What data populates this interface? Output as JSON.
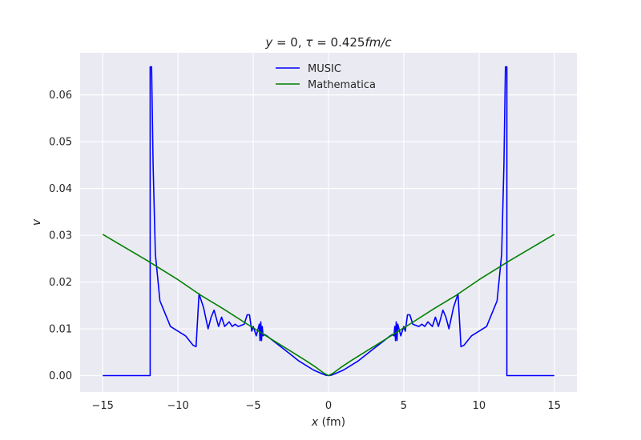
{
  "chart_data": {
    "type": "line",
    "title": "y = 0, τ = 0.425fm/c",
    "title_parts": {
      "y": "y",
      "eq1": " = 0, ",
      "tau": "τ",
      "eq2": " = 0.425",
      "unit": "fm/c"
    },
    "xlabel": "x (fm)",
    "xlabel_parts": {
      "var": "x",
      "unit": " (fm)"
    },
    "ylabel": "v",
    "xlim": [
      -16.5,
      16.5
    ],
    "ylim": [
      -0.0035,
      0.069
    ],
    "x_ticks": [
      -15,
      -10,
      -5,
      0,
      5,
      10,
      15
    ],
    "x_tick_labels": [
      "−15",
      "−10",
      "−5",
      "0",
      "5",
      "10",
      "15"
    ],
    "y_ticks": [
      0.0,
      0.01,
      0.02,
      0.03,
      0.04,
      0.05,
      0.06
    ],
    "y_tick_labels": [
      "0.00",
      "0.01",
      "0.02",
      "0.03",
      "0.04",
      "0.05",
      "0.06"
    ],
    "grid": true,
    "background": "#eaeaf2",
    "legend": {
      "position": "top-center",
      "entries": [
        "MUSIC",
        "Mathematica"
      ]
    },
    "series": [
      {
        "name": "MUSIC",
        "color": "#0000ff",
        "x": [
          -15.0,
          -11.85,
          -11.85,
          -11.75,
          -11.65,
          -11.5,
          -11.2,
          -10.5,
          -9.5,
          -9.0,
          -8.8,
          -8.6,
          -8.3,
          -8.0,
          -7.8,
          -7.6,
          -7.3,
          -7.1,
          -6.9,
          -6.6,
          -6.4,
          -6.2,
          -6.0,
          -5.6,
          -5.4,
          -5.25,
          -5.1,
          -5.0,
          -4.8,
          -4.6,
          -4.55,
          -4.5,
          -4.45,
          -4.4,
          -4.35,
          -4.25,
          -4.1,
          -3.7,
          -3.3,
          -2.9,
          -2.5,
          -2.0,
          -1.5,
          -1.0,
          -0.5,
          -0.2,
          0.0,
          0.2,
          0.5,
          1.0,
          1.5,
          2.0,
          2.5,
          2.9,
          3.3,
          3.7,
          4.1,
          4.25,
          4.35,
          4.4,
          4.45,
          4.5,
          4.55,
          4.6,
          4.8,
          5.0,
          5.1,
          5.25,
          5.4,
          5.6,
          6.0,
          6.2,
          6.4,
          6.6,
          6.9,
          7.1,
          7.3,
          7.6,
          7.8,
          8.0,
          8.3,
          8.6,
          8.8,
          9.0,
          9.5,
          10.5,
          11.2,
          11.5,
          11.65,
          11.75,
          11.85,
          11.85,
          15.0
        ],
        "y": [
          0.0,
          0.0,
          0.066,
          0.066,
          0.045,
          0.026,
          0.016,
          0.0105,
          0.0085,
          0.0065,
          0.0062,
          0.0175,
          0.0145,
          0.01,
          0.0125,
          0.014,
          0.0105,
          0.0125,
          0.0105,
          0.0115,
          0.0105,
          0.011,
          0.0105,
          0.011,
          0.013,
          0.013,
          0.0095,
          0.0105,
          0.0085,
          0.011,
          0.0075,
          0.0115,
          0.0075,
          0.0105,
          0.0085,
          0.0088,
          0.0085,
          0.0075,
          0.0065,
          0.0055,
          0.0045,
          0.0032,
          0.0022,
          0.0012,
          0.0005,
          0.0001,
          0.0,
          0.0001,
          0.0005,
          0.0012,
          0.0022,
          0.0032,
          0.0045,
          0.0055,
          0.0065,
          0.0075,
          0.0085,
          0.0088,
          0.0085,
          0.0105,
          0.0075,
          0.0115,
          0.0075,
          0.011,
          0.0085,
          0.0105,
          0.0095,
          0.013,
          0.013,
          0.011,
          0.0105,
          0.011,
          0.0105,
          0.0115,
          0.0105,
          0.0125,
          0.0105,
          0.014,
          0.0125,
          0.01,
          0.0145,
          0.0175,
          0.0062,
          0.0065,
          0.0085,
          0.0105,
          0.016,
          0.026,
          0.045,
          0.066,
          0.066,
          0.0,
          0.0
        ]
      },
      {
        "name": "Mathematica",
        "color": "#008000",
        "x": [
          -15.0,
          -12.0,
          -10.0,
          -8.5,
          -7.0,
          -5.5,
          -4.5,
          -3.5,
          -2.5,
          -1.5,
          -0.8,
          -0.3,
          0.0,
          0.3,
          0.8,
          1.5,
          2.5,
          3.5,
          4.5,
          5.5,
          7.0,
          8.5,
          10.0,
          12.0,
          15.0
        ],
        "y": [
          0.0302,
          0.0245,
          0.0205,
          0.0172,
          0.0143,
          0.0112,
          0.0092,
          0.0072,
          0.0052,
          0.0032,
          0.0017,
          0.0005,
          0.0,
          0.0005,
          0.0017,
          0.0032,
          0.0052,
          0.0072,
          0.0092,
          0.0112,
          0.0143,
          0.0172,
          0.0205,
          0.0245,
          0.0302
        ]
      }
    ]
  }
}
